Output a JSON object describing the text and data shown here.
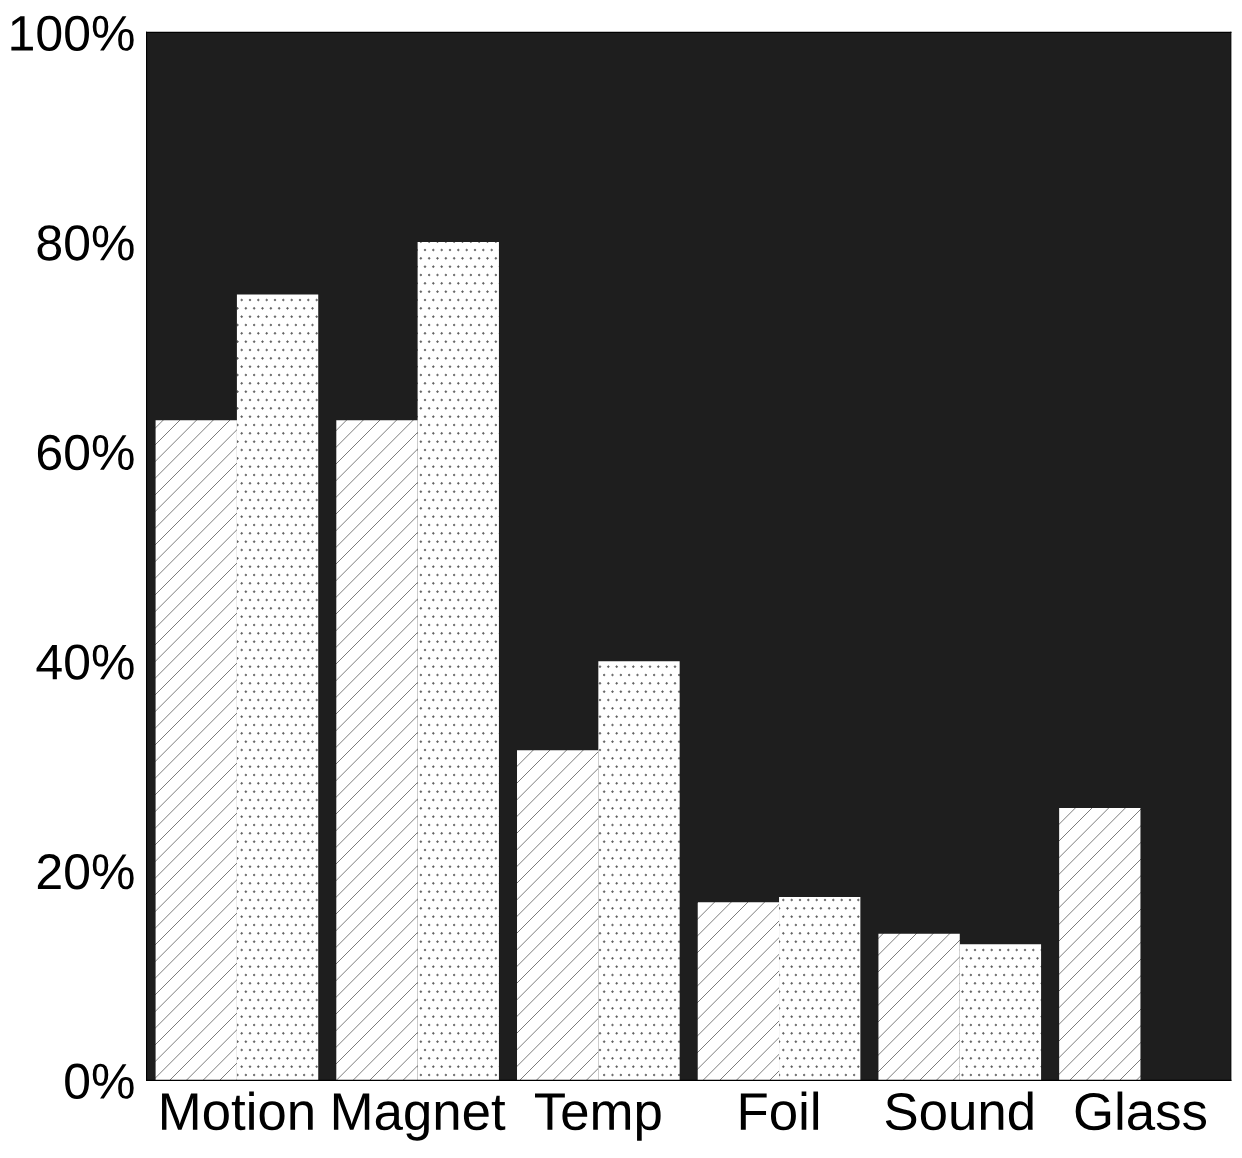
{
  "chart_data": {
    "type": "bar",
    "categories": [
      "Motion",
      "Magnet",
      "Temp",
      "Foil",
      "Sound",
      "Glass"
    ],
    "series": [
      {
        "color": "#ffffff",
        "values": [
          63,
          63,
          31.5,
          17,
          14,
          26
        ]
      },
      {
        "color": "#ffffff",
        "values": [
          75,
          80,
          40,
          17.5,
          13,
          null
        ]
      }
    ],
    "ylim": [
      0,
      100
    ],
    "yticks": [
      {
        "value": 0,
        "label": "0%"
      },
      {
        "value": 20,
        "label": "20%"
      },
      {
        "value": 40,
        "label": "40%"
      },
      {
        "value": 60,
        "label": "60%"
      },
      {
        "value": 80,
        "label": "80%"
      },
      {
        "value": 100,
        "label": "100%"
      }
    ],
    "grid": false
  }
}
